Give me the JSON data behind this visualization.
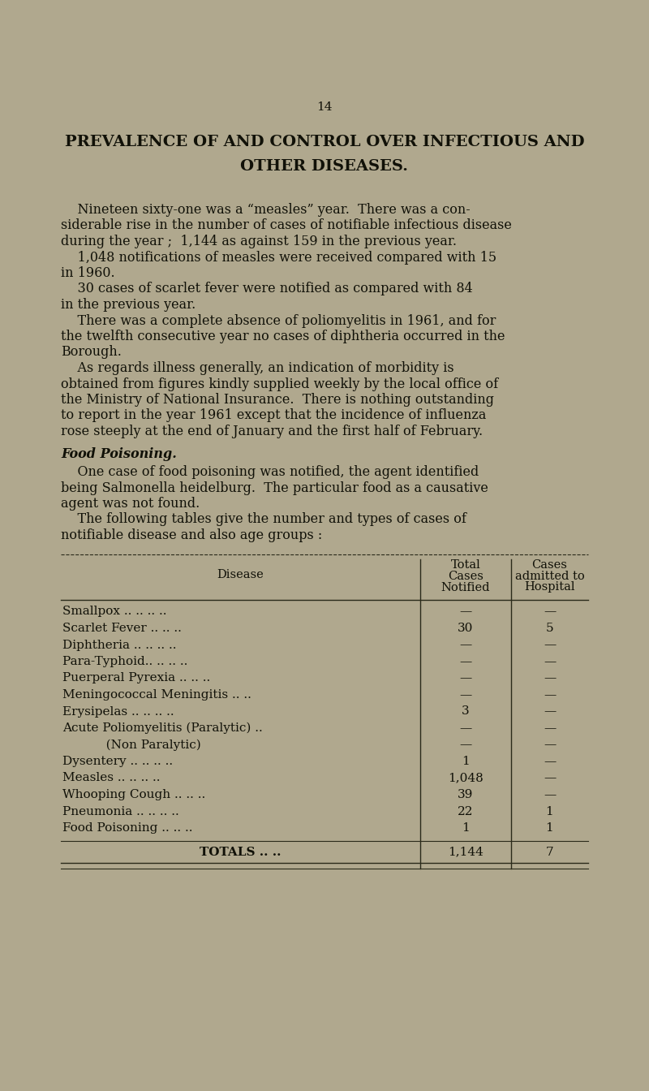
{
  "background_color": "#b0a88e",
  "page_number": "14",
  "title_line1": "PREVALENCE OF AND CONTROL OVER INFECTIOUS AND",
  "title_line2": "OTHER DISEASES.",
  "para1_lines": [
    "    Nineteen sixty-one was a “measles” year.  There was a con-",
    "siderable rise in the number of cases of notifiable infectious disease",
    "during the year ;  1,144 as against 159 in the previous year."
  ],
  "para2_lines": [
    "    1,048 notifications of measles were received compared with 15",
    "in 1960."
  ],
  "para3_lines": [
    "    30 cases of scarlet fever were notified as compared with 84",
    "in the previous year."
  ],
  "para4_lines": [
    "    There was a complete absence of poliomyelitis in 1961, and for",
    "the twelfth consecutive year no cases of diphtheria occurred in the",
    "Borough."
  ],
  "para5_lines": [
    "    As regards illness generally, an indication of morbidity is",
    "obtained from figures kindly supplied weekly by the local office of",
    "the Ministry of National Insurance.  There is nothing outstanding",
    "to report in the year 1961 except that the incidence of influenza",
    "rose steeply at the end of January and the first half of February."
  ],
  "food_heading": "Food Poisoning.",
  "food_lines": [
    "    One case of food poisoning was notified, the agent identified",
    "being Salmonella heidelburg.  The particular food as a causative",
    "agent was not found."
  ],
  "table_intro_lines": [
    "    The following tables give the number and types of cases of",
    "notifiable disease and also age groups :"
  ],
  "col_header_disease": "Disease",
  "col_header_total": [
    "Total",
    "Cases",
    "Notified"
  ],
  "col_header_admitted": [
    "Cases",
    "admitted to",
    "Hospital"
  ],
  "table_rows": [
    [
      "Smallpox .. .. .. ..",
      "—",
      "—"
    ],
    [
      "Scarlet Fever .. .. ..",
      "30",
      "5"
    ],
    [
      "Diphtheria .. .. .. ..",
      "—",
      "—"
    ],
    [
      "Para-Typhoid.. .. .. ..",
      "—",
      "—"
    ],
    [
      "Puerperal Pyrexia .. .. ..",
      "—",
      "—"
    ],
    [
      "Meningococcal Meningitis .. ..",
      "—",
      "—"
    ],
    [
      "Erysipelas .. .. .. ..",
      "3",
      "—"
    ],
    [
      "Acute Poliomyelitis (Paralytic) ..",
      "—",
      "—"
    ],
    [
      "           (Non Paralytic)",
      "—",
      "—"
    ],
    [
      "Dysentery .. .. .. ..",
      "1",
      "—"
    ],
    [
      "Measles .. .. .. ..",
      "1,048",
      "—"
    ],
    [
      "Whooping Cough .. .. ..",
      "39",
      "—"
    ],
    [
      "Pneumonia .. .. .. ..",
      "22",
      "1"
    ],
    [
      "Food Poisoning .. .. ..",
      "1",
      "1"
    ]
  ],
  "totals_label": "TOTALS .. ..",
  "totals_notified": "1,144",
  "totals_admitted": "7",
  "text_color": "#111108",
  "line_color": "#2a2a1a"
}
